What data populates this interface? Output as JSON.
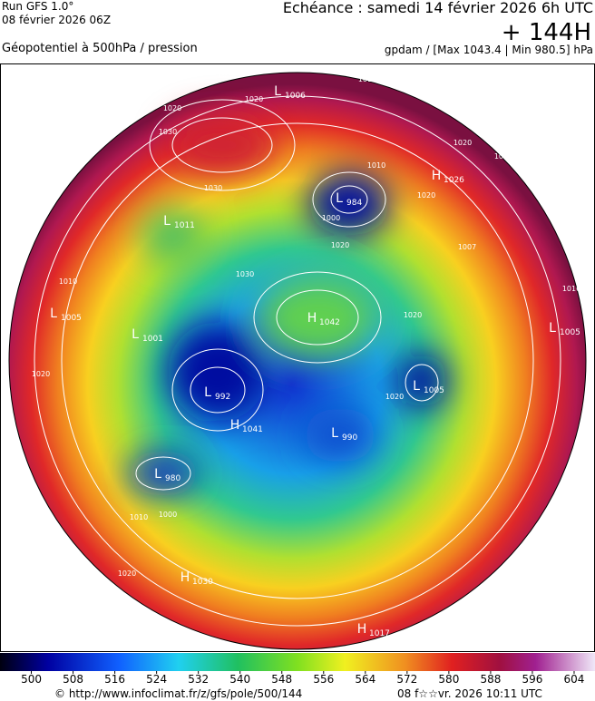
{
  "header": {
    "run": "Run GFS 1.0°",
    "run_date": "08 février 2026 06Z",
    "echeance": "Echéance : samedi 14 février 2026 6h UTC",
    "lead": "+ 144H",
    "field": "Géopotentiel à 500hPa / pression",
    "units": "gpdam / [Max 1043.4 | Min 980.5] hPa"
  },
  "map": {
    "centers": [
      {
        "type": "L",
        "value": "1006"
      },
      {
        "type": "H",
        "value": "1026"
      },
      {
        "type": "L",
        "value": "984"
      },
      {
        "type": "L",
        "value": "1011"
      },
      {
        "type": "H",
        "value": "1042"
      },
      {
        "type": "L",
        "value": "1005"
      },
      {
        "type": "L",
        "value": "1001"
      },
      {
        "type": "L",
        "value": "1005"
      },
      {
        "type": "L",
        "value": "1005"
      },
      {
        "type": "L",
        "value": "992"
      },
      {
        "type": "H",
        "value": "1041"
      },
      {
        "type": "L",
        "value": "990"
      },
      {
        "type": "L",
        "value": "980"
      },
      {
        "type": "H",
        "value": "1030"
      },
      {
        "type": "H",
        "value": "1017"
      }
    ],
    "isobar_labels": [
      "1010",
      "1010",
      "1020",
      "1020",
      "1030",
      "1030",
      "1010",
      "1020",
      "1000",
      "1020",
      "1020",
      "1010",
      "1030",
      "1020",
      "1020",
      "1010",
      "1020",
      "1010",
      "1020",
      "1000",
      "1010",
      "1007"
    ]
  },
  "colorbar": {
    "range": [
      494,
      608
    ],
    "ticks": [
      500,
      508,
      516,
      524,
      532,
      540,
      548,
      556,
      564,
      572,
      580,
      588,
      596,
      604
    ]
  },
  "footer": {
    "source": "© http://www.infoclimat.fr/z/gfs/pole/500/144",
    "generated": "08 f☆☆vr. 2026 10:11 UTC"
  }
}
